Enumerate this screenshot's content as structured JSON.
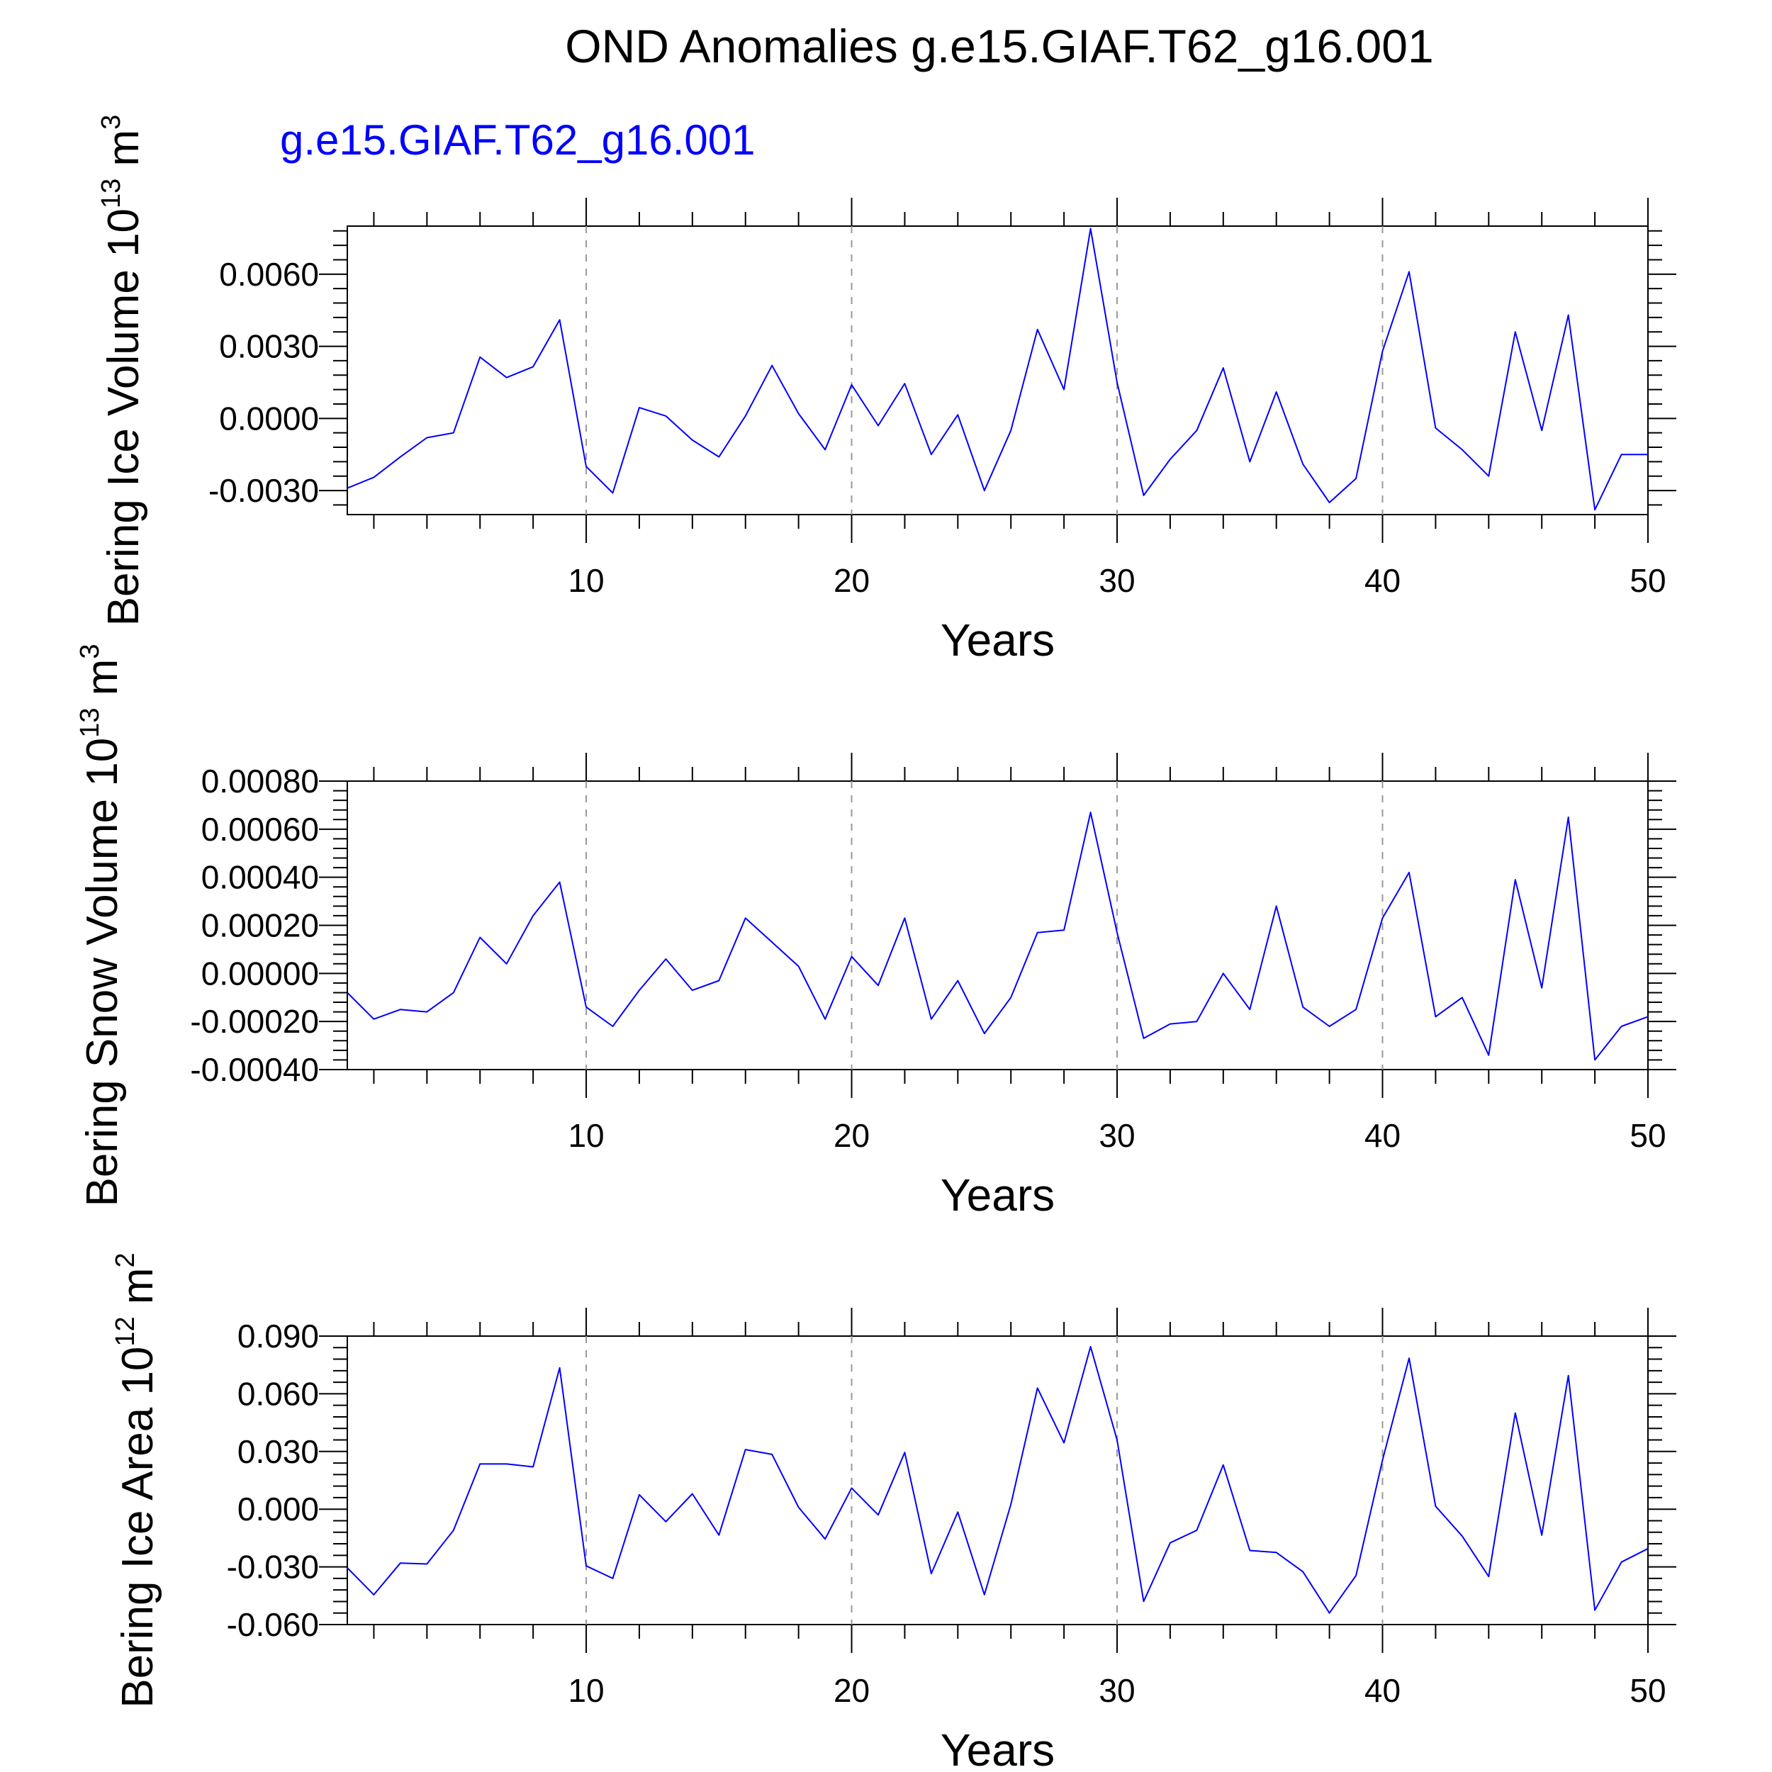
{
  "title": "OND Anomalies g.e15.GIAF.T62_g16.001",
  "legend_label": "g.e15.GIAF.T62_g16.001",
  "line_color": "#0000ff",
  "chart_data": [
    {
      "type": "line",
      "ylabel": {
        "main": "Bering Ice Volume 10",
        "exp": "13",
        "unit": " m",
        "unit_exp": "3"
      },
      "xlabel": "Years",
      "xlim": [
        1,
        50
      ],
      "ylim": [
        -0.004,
        0.008
      ],
      "yticks": [
        -0.003,
        0.0,
        0.003,
        0.006
      ],
      "ytick_labels": [
        "-0.0030",
        "0.0000",
        "0.0030",
        "0.0060"
      ],
      "xticks": [
        10,
        20,
        30,
        40,
        50
      ],
      "xtick_labels": [
        "10",
        "20",
        "30",
        "40",
        "50"
      ],
      "x": [
        1,
        2,
        3,
        4,
        5,
        6,
        7,
        8,
        9,
        10,
        11,
        12,
        13,
        14,
        15,
        16,
        17,
        18,
        19,
        20,
        21,
        22,
        23,
        24,
        25,
        26,
        27,
        28,
        29,
        30,
        31,
        32,
        33,
        34,
        35,
        36,
        37,
        38,
        39,
        40,
        41,
        42,
        43,
        44,
        45,
        46,
        47,
        48,
        49,
        50
      ],
      "series": [
        {
          "values": [
            -0.0029,
            -0.00245,
            -0.0016,
            -0.0008,
            -0.0006,
            0.00255,
            0.0017,
            0.00215,
            0.0041,
            -0.002,
            -0.0031,
            0.00045,
            0.0001,
            -0.0009,
            -0.0016,
            0.0001,
            0.0022,
            0.0002,
            -0.0013,
            0.0014,
            -0.0003,
            0.00145,
            -0.0015,
            0.00015,
            -0.003,
            -0.0005,
            0.0037,
            0.0012,
            0.0079,
            0.0015,
            -0.0032,
            -0.0017,
            -0.0005,
            0.0021,
            -0.0018,
            0.0011,
            -0.0019,
            -0.0035,
            -0.0025,
            0.0028,
            0.0061,
            -0.0004,
            -0.0013,
            -0.0024,
            0.0036,
            -0.0005,
            0.0043,
            -0.0038,
            -0.0015,
            -0.0015
          ]
        }
      ]
    },
    {
      "type": "line",
      "ylabel": {
        "main": "Bering Snow Volume 10",
        "exp": "13",
        "unit": " m",
        "unit_exp": "3"
      },
      "xlabel": "Years",
      "xlim": [
        1,
        50
      ],
      "ylim": [
        -0.0004,
        0.0008
      ],
      "yticks": [
        -0.0004,
        -0.0002,
        0.0,
        0.0002,
        0.0004,
        0.0006,
        0.0008
      ],
      "ytick_labels": [
        "-0.00040",
        "-0.00020",
        "0.00000",
        "0.00020",
        "0.00040",
        "0.00060",
        "0.00080"
      ],
      "xticks": [
        10,
        20,
        30,
        40,
        50
      ],
      "xtick_labels": [
        "10",
        "20",
        "30",
        "40",
        "50"
      ],
      "x": [
        1,
        2,
        3,
        4,
        5,
        6,
        7,
        8,
        9,
        10,
        11,
        12,
        13,
        14,
        15,
        16,
        17,
        18,
        19,
        20,
        21,
        22,
        23,
        24,
        25,
        26,
        27,
        28,
        29,
        30,
        31,
        32,
        33,
        34,
        35,
        36,
        37,
        38,
        39,
        40,
        41,
        42,
        43,
        44,
        45,
        46,
        47,
        48,
        49,
        50
      ],
      "series": [
        {
          "values": [
            -8e-05,
            -0.00019,
            -0.00015,
            -0.00016,
            -8e-05,
            0.00015,
            4e-05,
            0.00024,
            0.00038,
            -0.00014,
            -0.00022,
            -7e-05,
            6e-05,
            -7e-05,
            -3e-05,
            0.00023,
            0.00013,
            3e-05,
            -0.00019,
            7e-05,
            -5e-05,
            0.00023,
            -0.00019,
            -3e-05,
            -0.00025,
            -0.0001,
            0.00017,
            0.00018,
            0.00067,
            0.00017,
            -0.00027,
            -0.00021,
            -0.0002,
            0.0,
            -0.00015,
            0.00028,
            -0.00014,
            -0.00022,
            -0.00015,
            0.00023,
            0.00042,
            -0.00018,
            -0.0001,
            -0.00034,
            0.00039,
            -6e-05,
            0.00065,
            -0.00036,
            -0.00022,
            -0.00018
          ]
        }
      ]
    },
    {
      "type": "line",
      "ylabel": {
        "main": "Bering Ice Area 10",
        "exp": "12",
        "unit": " m",
        "unit_exp": "2"
      },
      "xlabel": "Years",
      "xlim": [
        1,
        50
      ],
      "ylim": [
        -0.06,
        0.09
      ],
      "yticks": [
        -0.06,
        -0.03,
        0.0,
        0.03,
        0.06,
        0.09
      ],
      "ytick_labels": [
        "-0.060",
        "-0.030",
        "0.000",
        "0.030",
        "0.060",
        "0.090"
      ],
      "xticks": [
        10,
        20,
        30,
        40,
        50
      ],
      "xtick_labels": [
        "10",
        "20",
        "30",
        "40",
        "50"
      ],
      "x": [
        1,
        2,
        3,
        4,
        5,
        6,
        7,
        8,
        9,
        10,
        11,
        12,
        13,
        14,
        15,
        16,
        17,
        18,
        19,
        20,
        21,
        22,
        23,
        24,
        25,
        26,
        27,
        28,
        29,
        30,
        31,
        32,
        33,
        34,
        35,
        36,
        37,
        38,
        39,
        40,
        41,
        42,
        43,
        44,
        45,
        46,
        47,
        48,
        49,
        50
      ],
      "series": [
        {
          "values": [
            -0.0305,
            -0.0445,
            -0.028,
            -0.0285,
            -0.011,
            0.0235,
            0.0235,
            0.022,
            0.0735,
            -0.0295,
            -0.036,
            0.0075,
            -0.0065,
            0.008,
            -0.0135,
            0.031,
            0.0285,
            0.001,
            -0.0155,
            0.011,
            -0.003,
            0.0295,
            -0.0335,
            -0.0015,
            -0.0445,
            0.0025,
            0.063,
            0.0345,
            0.0845,
            0.036,
            -0.048,
            -0.0175,
            -0.011,
            0.023,
            -0.0215,
            -0.0225,
            -0.0325,
            -0.054,
            -0.0345,
            0.0255,
            0.0785,
            0.0015,
            -0.014,
            -0.035,
            0.05,
            -0.0135,
            0.0695,
            -0.0525,
            -0.0275,
            -0.0205
          ]
        }
      ]
    }
  ]
}
